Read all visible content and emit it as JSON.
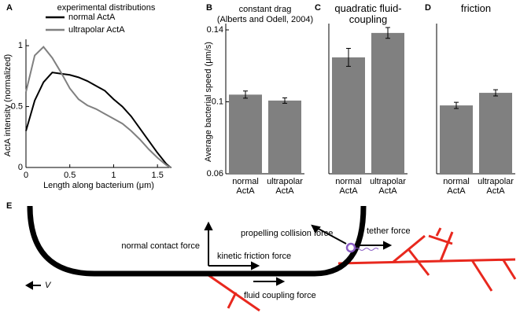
{
  "chart_data": [
    {
      "type": "line",
      "label": "A",
      "title": "experimental distributions",
      "xlabel": "Length along bacterium (μm)",
      "ylabel": "ActA intensity (normalized)",
      "x": [
        0,
        0.1,
        0.2,
        0.3,
        0.4,
        0.5,
        0.6,
        0.7,
        0.8,
        0.9,
        1.0,
        1.1,
        1.2,
        1.3,
        1.4,
        1.5,
        1.6,
        1.65
      ],
      "series": [
        {
          "name": "normal ActA",
          "color": "#000000",
          "values": [
            0.3,
            0.55,
            0.7,
            0.78,
            0.77,
            0.76,
            0.74,
            0.71,
            0.67,
            0.63,
            0.56,
            0.5,
            0.42,
            0.32,
            0.22,
            0.12,
            0.03,
            0
          ]
        },
        {
          "name": "ultrapolar ActA",
          "color": "#808080",
          "values": [
            0.62,
            0.92,
            0.99,
            0.9,
            0.78,
            0.65,
            0.56,
            0.51,
            0.48,
            0.44,
            0.4,
            0.36,
            0.3,
            0.23,
            0.15,
            0.08,
            0.02,
            0
          ]
        }
      ],
      "xlim": [
        0,
        1.66
      ],
      "xticks": [
        0,
        0.5,
        1,
        1.5
      ],
      "ylim": [
        0,
        1.02
      ],
      "yticks": [
        0,
        0.5,
        1
      ]
    },
    {
      "type": "bar",
      "label": "B",
      "title": "constant drag",
      "subtitle": "(Alberts and Odell, 2004)",
      "ylabel": "Average bacterial speed (μm/s)",
      "categories": [
        "normal ActA",
        "ultrapolar ActA"
      ],
      "values": [
        0.104,
        0.1007
      ],
      "errors": [
        0.002,
        0.0015
      ],
      "color": "#808080",
      "ylim": [
        0.06,
        0.14
      ],
      "yticks": [
        0.06,
        0.1,
        0.14
      ]
    },
    {
      "type": "bar",
      "label": "C",
      "title": "quadratic fluid-coupling",
      "categories": [
        "normal ActA",
        "ultrapolar ActA"
      ],
      "values": [
        0.1247,
        0.1383
      ],
      "errors": [
        0.005,
        0.003
      ],
      "color": "#808080",
      "ylim": [
        0.06,
        0.14
      ]
    },
    {
      "type": "bar",
      "label": "D",
      "title": "friction",
      "categories": [
        "normal ActA",
        "ultrapolar ActA"
      ],
      "values": [
        0.098,
        0.105
      ],
      "errors": [
        0.0017,
        0.0017
      ],
      "color": "#808080",
      "ylim": [
        0.06,
        0.14
      ]
    }
  ],
  "diagram": {
    "label": "E",
    "velocity": "V",
    "forces": [
      "normal contact force",
      "kinetic friction force",
      "propelling collision force",
      "tether force",
      "fluid coupling force"
    ]
  }
}
